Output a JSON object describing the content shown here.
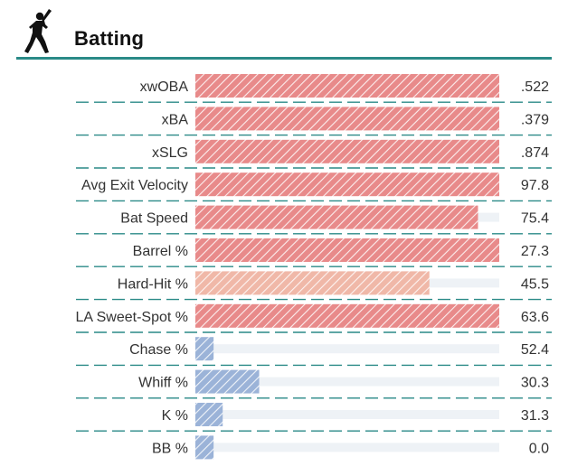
{
  "section": {
    "title": "Batting",
    "icon": "batter-silhouette-icon",
    "accent_color": "#2a8a87"
  },
  "chart_data": {
    "type": "bar",
    "orientation": "horizontal",
    "title": "",
    "xlabel": "",
    "ylabel": "",
    "categories": [
      "xwOBA",
      "xBA",
      "xSLG",
      "Avg Exit Velocity",
      "Bat Speed",
      "Barrel %",
      "Hard-Hit %",
      "LA Sweet-Spot %",
      "Chase %",
      "Whiff %",
      "K %",
      "BB %"
    ],
    "value_labels": [
      ".522",
      ".379",
      ".874",
      "97.8",
      "75.4",
      "27.3",
      "45.5",
      "63.6",
      "52.4",
      "30.3",
      "31.3",
      "0.0"
    ],
    "percentiles": [
      100,
      100,
      100,
      100,
      93,
      100,
      77,
      100,
      6,
      21,
      9,
      6
    ],
    "tiers": [
      "high",
      "high",
      "high",
      "high",
      "high",
      "high",
      "mid",
      "high",
      "low",
      "low",
      "low",
      "low"
    ],
    "xlim": [
      0,
      100
    ],
    "colors": {
      "high": "#e88a8a",
      "mid": "#f0b8a8",
      "low": "#9bb3d8",
      "track": "#eef2f6",
      "divider": "#2a8a87",
      "text": "#333333"
    }
  }
}
